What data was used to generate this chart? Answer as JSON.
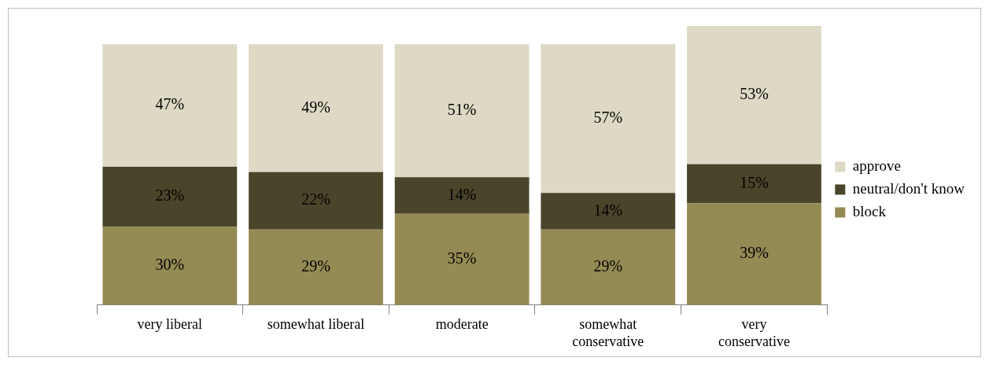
{
  "chart_data": {
    "type": "bar",
    "stacked": true,
    "legend": "right",
    "tick_labels": "x",
    "categories": [
      "very liberal",
      "somewhat liberal",
      "moderate",
      "somewhat conservative",
      "very conservative"
    ],
    "series": [
      {
        "name": "block",
        "color": "#948a54",
        "values": [
          30,
          29,
          35,
          29,
          39
        ],
        "value_labels": [
          "30%",
          "29%",
          "35%",
          "29%",
          "39%"
        ]
      },
      {
        "name": "neutral/don't know",
        "color": "#4a452a",
        "values": [
          23,
          22,
          14,
          14,
          15
        ],
        "value_labels": [
          "23%",
          "22%",
          "14%",
          "14%",
          "15%"
        ]
      },
      {
        "name": "approve",
        "color": "#ddd9c4",
        "values": [
          47,
          49,
          51,
          57,
          53
        ],
        "value_labels": [
          "47%",
          "49%",
          "51%",
          "57%",
          "53%"
        ]
      }
    ]
  }
}
